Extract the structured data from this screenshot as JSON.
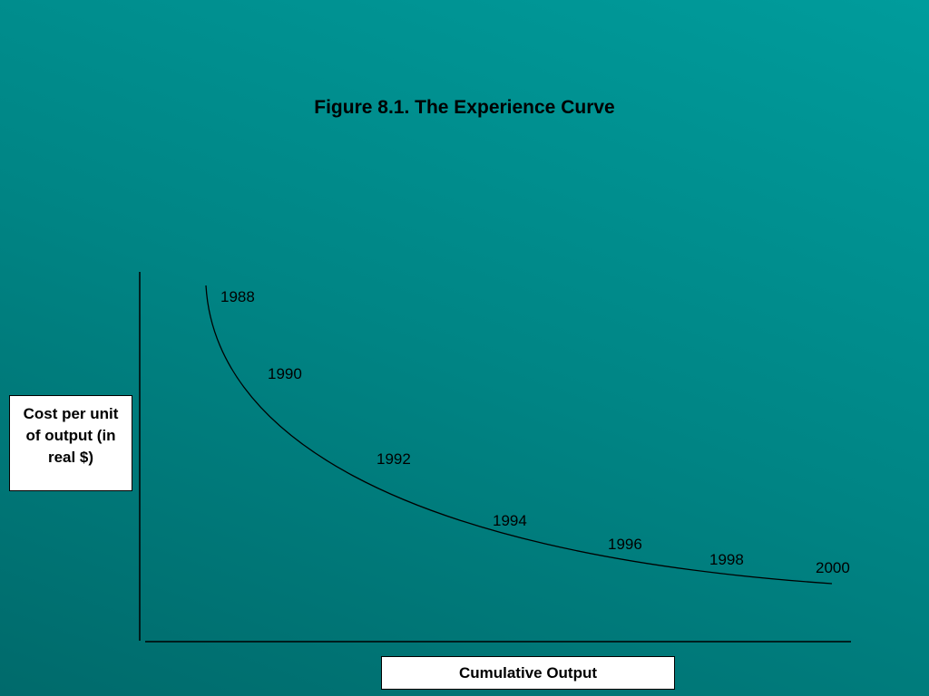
{
  "title": "Figure 8.1. The Experience Curve",
  "y_axis_label": "Cost per unit of output (in real $)",
  "x_axis_label": "Cumulative Output",
  "curve_labels": [
    "1988",
    "1990",
    "1992",
    "1994",
    "1996",
    "1998",
    "2000"
  ]
}
